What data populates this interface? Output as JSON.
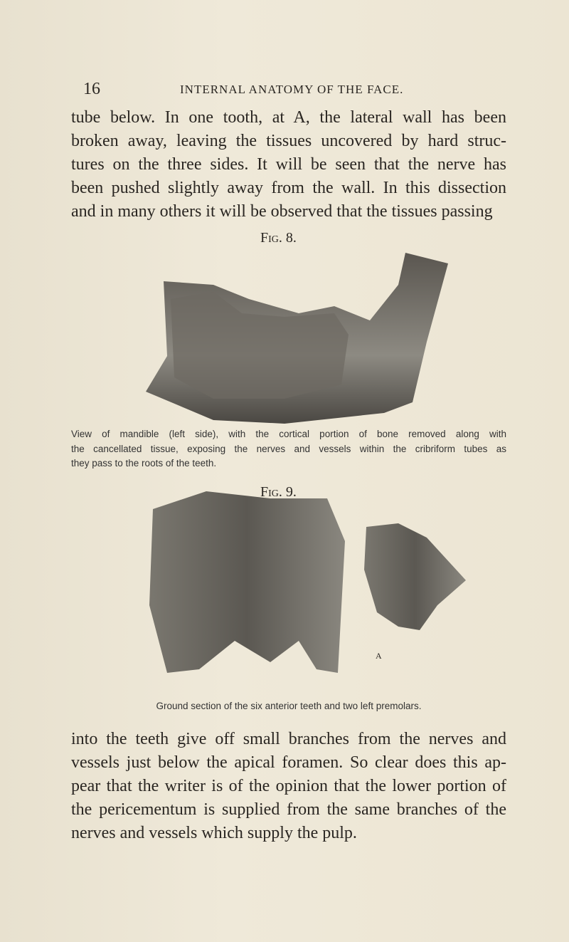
{
  "header": {
    "page_number": "16",
    "running_title": "INTERNAL ANATOMY OF THE FACE."
  },
  "paragraphs": [
    {
      "lines": [
        "tube below.  In one tooth, at A, the lateral wall has been",
        "broken away, leaving the tissues uncovered by hard struc-",
        "tures on the three sides.  It will be seen that the nerve has",
        "been pushed slightly away from the wall.  In this dissection",
        "and in many others it will be observed that the tissues passing"
      ]
    },
    {
      "lines": [
        "into the teeth give off small branches from the nerves and",
        "vessels just below the apical foramen.  So clear does this ap-",
        "pear that the writer is of the opinion that the lower portion of",
        "the pericementum is supplied from the same branches of the",
        "nerves and vessels which supply the pulp."
      ]
    }
  ],
  "figures": [
    {
      "label": "Fig. 8.",
      "caption_lines": [
        "View of mandible (left side), with the cortical portion of bone removed along with",
        "the cancellated tissue, exposing the nerves and vessels within the cribriform tubes as",
        "they pass to the roots of the teeth."
      ]
    },
    {
      "label": "Fig. 9.",
      "annotation": "A",
      "caption_lines": [
        "Ground section of the six anterior teeth and two left premolars."
      ]
    }
  ]
}
